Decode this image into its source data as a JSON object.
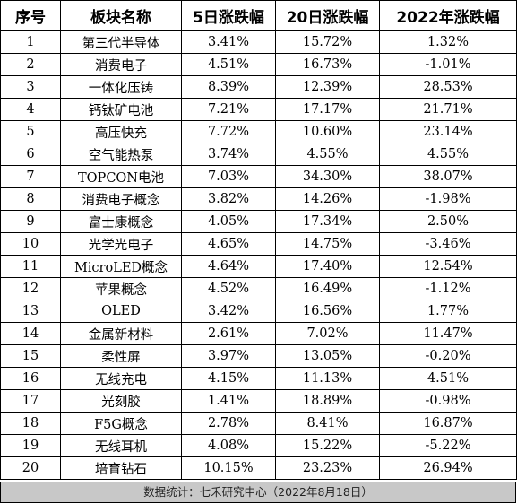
{
  "table": {
    "headers": [
      "序号",
      "板块名称",
      "5日涨跌幅",
      "20日涨跌幅",
      "2022年涨跌幅"
    ],
    "rows": [
      [
        "1",
        "第三代半导体",
        "3.41%",
        "15.72%",
        "1.32%"
      ],
      [
        "2",
        "消费电子",
        "4.51%",
        "16.73%",
        "-1.01%"
      ],
      [
        "3",
        "一体化压铸",
        "8.39%",
        "12.39%",
        "28.53%"
      ],
      [
        "4",
        "钙钛矿电池",
        "7.21%",
        "17.17%",
        "21.71%"
      ],
      [
        "5",
        "高压快充",
        "7.72%",
        "10.60%",
        "23.14%"
      ],
      [
        "6",
        "空气能热泵",
        "3.74%",
        "4.55%",
        "4.55%"
      ],
      [
        "7",
        "TOPCON电池",
        "7.03%",
        "34.30%",
        "38.07%"
      ],
      [
        "8",
        "消费电子概念",
        "3.82%",
        "14.26%",
        "-1.98%"
      ],
      [
        "9",
        "富士康概念",
        "4.05%",
        "17.34%",
        "2.50%"
      ],
      [
        "10",
        "光学光电子",
        "4.65%",
        "14.75%",
        "-3.46%"
      ],
      [
        "11",
        "MicroLED概念",
        "4.64%",
        "17.40%",
        "12.54%"
      ],
      [
        "12",
        "苹果概念",
        "4.52%",
        "16.49%",
        "-1.12%"
      ],
      [
        "13",
        "OLED",
        "3.42%",
        "16.56%",
        "1.77%"
      ],
      [
        "14",
        "金属新材料",
        "2.61%",
        "7.02%",
        "11.47%"
      ],
      [
        "15",
        "柔性屏",
        "3.97%",
        "13.05%",
        "-0.20%"
      ],
      [
        "16",
        "无线充电",
        "4.15%",
        "11.13%",
        "4.51%"
      ],
      [
        "17",
        "光刻胶",
        "1.41%",
        "18.89%",
        "-0.98%"
      ],
      [
        "18",
        "F5G概念",
        "2.78%",
        "8.41%",
        "16.87%"
      ],
      [
        "19",
        "无线耳机",
        "4.08%",
        "15.22%",
        "-5.22%"
      ],
      [
        "20",
        "培育钻石",
        "10.15%",
        "23.23%",
        "26.94%"
      ]
    ]
  },
  "footer": {
    "text": "数据统计：七禾研究中心（2022年8月18日）"
  }
}
